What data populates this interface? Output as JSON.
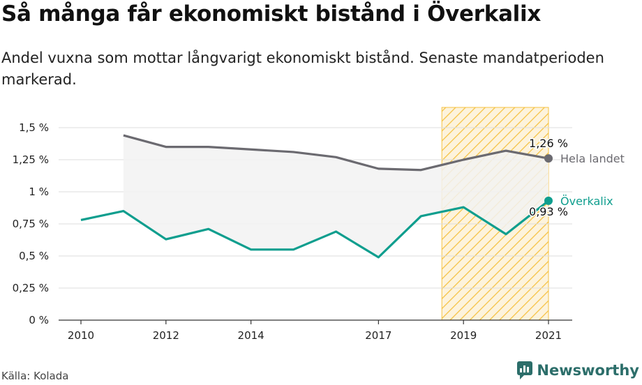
{
  "header": {
    "title": "Så många får ekonomiskt bistånd i Överkalix",
    "subtitle": "Andel vuxna som mottar långvarigt ekonomiskt bistånd. Senaste mandatperioden markerad."
  },
  "footer": {
    "source": "Källa: Kolada",
    "brand": "Newsworthy",
    "brand_icon": "newsworthy-logo-icon"
  },
  "colors": {
    "national": "#6b6a70",
    "local": "#0f9e8e",
    "highlight": "#f5c242",
    "grid": "#dddddd",
    "fill": "#f2f2f2"
  },
  "chart_data": {
    "type": "line",
    "title": "",
    "xlabel": "",
    "ylabel": "",
    "x_ticks": [
      "2010",
      "2012",
      "2014",
      "2017",
      "2019",
      "2021"
    ],
    "x_range": [
      2010,
      2021
    ],
    "y_ticks": [
      "0 %",
      "0,25 %",
      "0,5 %",
      "0,75 %",
      "1 %",
      "1,25 %",
      "1,5 %"
    ],
    "ylim": [
      0,
      1.5
    ],
    "grid": true,
    "highlight_period": [
      2019,
      2021
    ],
    "series": [
      {
        "name": "Hela landet",
        "end_label": "1,26 %",
        "x": [
          2011,
          2012,
          2013,
          2014,
          2015,
          2016,
          2017,
          2018,
          2019,
          2020,
          2021
        ],
        "values": [
          1.44,
          1.35,
          1.35,
          1.33,
          1.31,
          1.27,
          1.18,
          1.17,
          1.25,
          1.32,
          1.26
        ]
      },
      {
        "name": "Överkalix",
        "end_label": "0,93 %",
        "x": [
          2010,
          2011,
          2012,
          2013,
          2014,
          2015,
          2016,
          2017,
          2018,
          2019,
          2020,
          2021
        ],
        "values": [
          0.78,
          0.85,
          0.63,
          0.71,
          0.55,
          0.55,
          0.69,
          0.49,
          0.81,
          0.88,
          0.67,
          0.93
        ]
      }
    ]
  }
}
